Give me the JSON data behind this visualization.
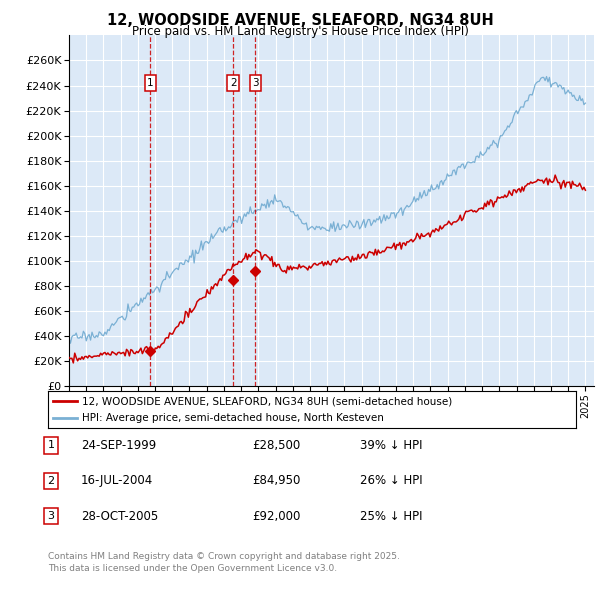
{
  "title": "12, WOODSIDE AVENUE, SLEAFORD, NG34 8UH",
  "subtitle": "Price paid vs. HM Land Registry's House Price Index (HPI)",
  "ylim": [
    0,
    280000
  ],
  "yticks": [
    0,
    20000,
    40000,
    60000,
    80000,
    100000,
    120000,
    140000,
    160000,
    180000,
    200000,
    220000,
    240000,
    260000
  ],
  "background_color": "#dce9f7",
  "grid_color": "#ffffff",
  "red_color": "#cc0000",
  "blue_color": "#7ab0d4",
  "legend_label_red": "12, WOODSIDE AVENUE, SLEAFORD, NG34 8UH (semi-detached house)",
  "legend_label_blue": "HPI: Average price, semi-detached house, North Kesteven",
  "sale_dates_dec": [
    1999.73,
    2004.54,
    2005.83
  ],
  "sale_prices": [
    28500,
    84950,
    92000
  ],
  "sale_labels": [
    "1",
    "2",
    "3"
  ],
  "footer_line1": "Contains HM Land Registry data © Crown copyright and database right 2025.",
  "footer_line2": "This data is licensed under the Open Government Licence v3.0.",
  "table_data": [
    [
      "1",
      "24-SEP-1999",
      "£28,500",
      "39% ↓ HPI"
    ],
    [
      "2",
      "16-JUL-2004",
      "£84,950",
      "26% ↓ HPI"
    ],
    [
      "3",
      "28-OCT-2005",
      "£92,000",
      "25% ↓ HPI"
    ]
  ]
}
